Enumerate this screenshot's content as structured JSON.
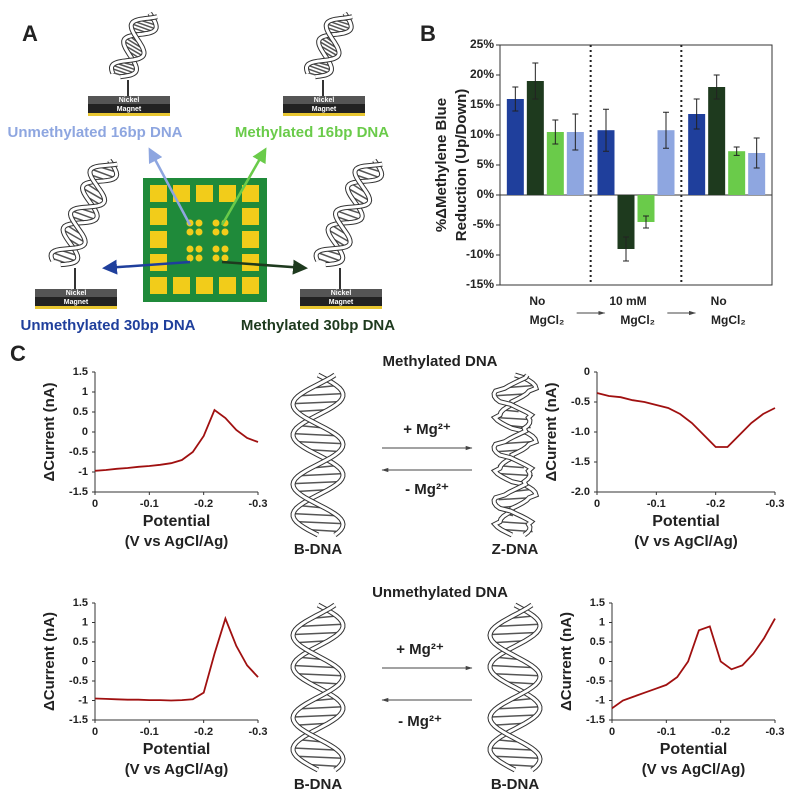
{
  "panel_labels": [
    "A",
    "B",
    "C"
  ],
  "panel_a": {
    "electrodes": [
      {
        "top": "Nickel",
        "bottom": "Magnet"
      },
      {
        "top": "Nickel",
        "bottom": "Magnet"
      },
      {
        "top": "Nickel",
        "bottom": "Magnet"
      },
      {
        "top": "Nickel",
        "bottom": "Magnet"
      }
    ]
  },
  "panel_c": {
    "rows": [
      {
        "title": "Methylated DNA",
        "left_form": "B-DNA",
        "right_form": "Z-DNA",
        "forward": "+ Mg²⁺",
        "backward": "- Mg²⁺"
      },
      {
        "title": "Unmethylated DNA",
        "left_form": "B-DNA",
        "right_form": "B-DNA",
        "forward": "+ Mg²⁺",
        "backward": "- Mg²⁺"
      }
    ]
  },
  "chart_data": [
    {
      "type": "bar",
      "ylabel": [
        "%ΔMethylene Blue",
        "Reduction (Up/Down)"
      ],
      "categories": [
        "No MgCl₂",
        "10 mM MgCl₂",
        "No MgCl₂"
      ],
      "series": [
        {
          "name": "Unmethylated 30bp DNA",
          "color": "#1f3f9c",
          "values": [
            16,
            10.8,
            13.5
          ],
          "errors": [
            2,
            3.5,
            2.5
          ]
        },
        {
          "name": "Methylated 30bp DNA",
          "color": "#1e3a1e",
          "values": [
            19,
            -9,
            18
          ],
          "errors": [
            3,
            2,
            2
          ]
        },
        {
          "name": "Methylated 16bp DNA",
          "color": "#6acb4a",
          "values": [
            10.5,
            -4.5,
            7.3
          ],
          "errors": [
            2,
            1,
            0.7
          ]
        },
        {
          "name": "Unmethylated 16bp DNA",
          "color": "#8ea6e0",
          "values": [
            10.5,
            10.8,
            7
          ],
          "errors": [
            3,
            3,
            2.5
          ]
        }
      ],
      "ylim": [
        -15,
        25
      ],
      "yticks": [
        {
          "value": -15,
          "label": "-15%"
        },
        {
          "value": -10,
          "label": "-10%"
        },
        {
          "value": -5,
          "label": "-5%"
        },
        {
          "value": 0,
          "label": "0%"
        },
        {
          "value": 5,
          "label": "5%"
        },
        {
          "value": 10,
          "label": "10%"
        },
        {
          "value": 15,
          "label": "15%"
        },
        {
          "value": 20,
          "label": "20%"
        },
        {
          "value": 25,
          "label": "25%"
        }
      ]
    },
    {
      "type": "line",
      "xlabel": "Potential",
      "xunit": "(V vs AgCl/Ag)",
      "ylabel": "ΔCurrent (nA)",
      "color": "#a01010",
      "x": [
        0,
        -0.02,
        -0.04,
        -0.06,
        -0.08,
        -0.1,
        -0.12,
        -0.14,
        -0.16,
        -0.18,
        -0.2,
        -0.22,
        -0.24,
        -0.26,
        -0.28,
        -0.3
      ],
      "values": [
        -0.97,
        -0.95,
        -0.92,
        -0.9,
        -0.87,
        -0.85,
        -0.82,
        -0.78,
        -0.7,
        -0.5,
        -0.1,
        0.55,
        0.35,
        0.05,
        -0.15,
        -0.25
      ],
      "xlim": [
        0,
        -0.3
      ],
      "xticks": [
        0,
        -0.1,
        -0.2,
        -0.3
      ],
      "ylim": [
        -1.5,
        1.5
      ],
      "yticks": [
        -1.5,
        -1,
        -0.5,
        0,
        0.5,
        1,
        1.5
      ]
    },
    {
      "type": "line",
      "xlabel": "Potential",
      "xunit": "(V vs AgCl/Ag)",
      "ylabel": "ΔCurrent (nA)",
      "color": "#a01010",
      "x": [
        0,
        -0.02,
        -0.04,
        -0.06,
        -0.08,
        -0.1,
        -0.12,
        -0.14,
        -0.16,
        -0.18,
        -0.2,
        -0.22,
        -0.24,
        -0.26,
        -0.28,
        -0.3
      ],
      "values": [
        -0.35,
        -0.4,
        -0.42,
        -0.47,
        -0.5,
        -0.55,
        -0.6,
        -0.7,
        -0.85,
        -1.05,
        -1.25,
        -1.25,
        -1.05,
        -0.85,
        -0.7,
        -0.6
      ],
      "xlim": [
        0,
        -0.3
      ],
      "xticks": [
        0,
        -0.1,
        -0.2,
        -0.3
      ],
      "ylim": [
        -2,
        0
      ],
      "yticks": [
        {
          "value": -2,
          "label": "-2.0"
        },
        {
          "value": -1.5,
          "label": "-1.5"
        },
        {
          "value": -1,
          "label": "-1.0"
        },
        {
          "value": -0.5,
          "label": "-0.5"
        },
        0
      ]
    },
    {
      "type": "line",
      "xlabel": "Potential",
      "xunit": "(V vs AgCl/Ag)",
      "ylabel": "ΔCurrent (nA)",
      "color": "#a01010",
      "x": [
        0,
        -0.02,
        -0.04,
        -0.06,
        -0.08,
        -0.1,
        -0.12,
        -0.14,
        -0.16,
        -0.18,
        -0.2,
        -0.22,
        -0.24,
        -0.26,
        -0.28,
        -0.3
      ],
      "values": [
        -0.95,
        -0.96,
        -0.97,
        -0.98,
        -0.98,
        -0.99,
        -0.99,
        -1,
        -0.99,
        -0.97,
        -0.8,
        0.2,
        1.1,
        0.4,
        -0.1,
        -0.4
      ],
      "xlim": [
        0,
        -0.3
      ],
      "xticks": [
        0,
        -0.1,
        -0.2,
        -0.3
      ],
      "ylim": [
        -1.5,
        1.5
      ],
      "yticks": [
        -1.5,
        -1,
        -0.5,
        0,
        0.5,
        1,
        1.5
      ]
    },
    {
      "type": "line",
      "xlabel": "Potential",
      "xunit": "(V vs AgCl/Ag)",
      "ylabel": "ΔCurrent (nA)",
      "color": "#a01010",
      "x": [
        0,
        -0.02,
        -0.04,
        -0.06,
        -0.08,
        -0.1,
        -0.12,
        -0.14,
        -0.16,
        -0.18,
        -0.2,
        -0.22,
        -0.24,
        -0.26,
        -0.28,
        -0.3
      ],
      "values": [
        -1.2,
        -1,
        -0.9,
        -0.8,
        -0.7,
        -0.6,
        -0.4,
        0,
        0.8,
        0.9,
        0,
        -0.2,
        -0.1,
        0.2,
        0.6,
        1.1
      ],
      "xlim": [
        0,
        -0.3
      ],
      "xticks": [
        0,
        -0.1,
        -0.2,
        -0.3
      ],
      "ylim": [
        -1.5,
        1.5
      ],
      "yticks": [
        -1.5,
        -1,
        -0.5,
        0,
        0.5,
        1,
        1.5
      ]
    }
  ]
}
